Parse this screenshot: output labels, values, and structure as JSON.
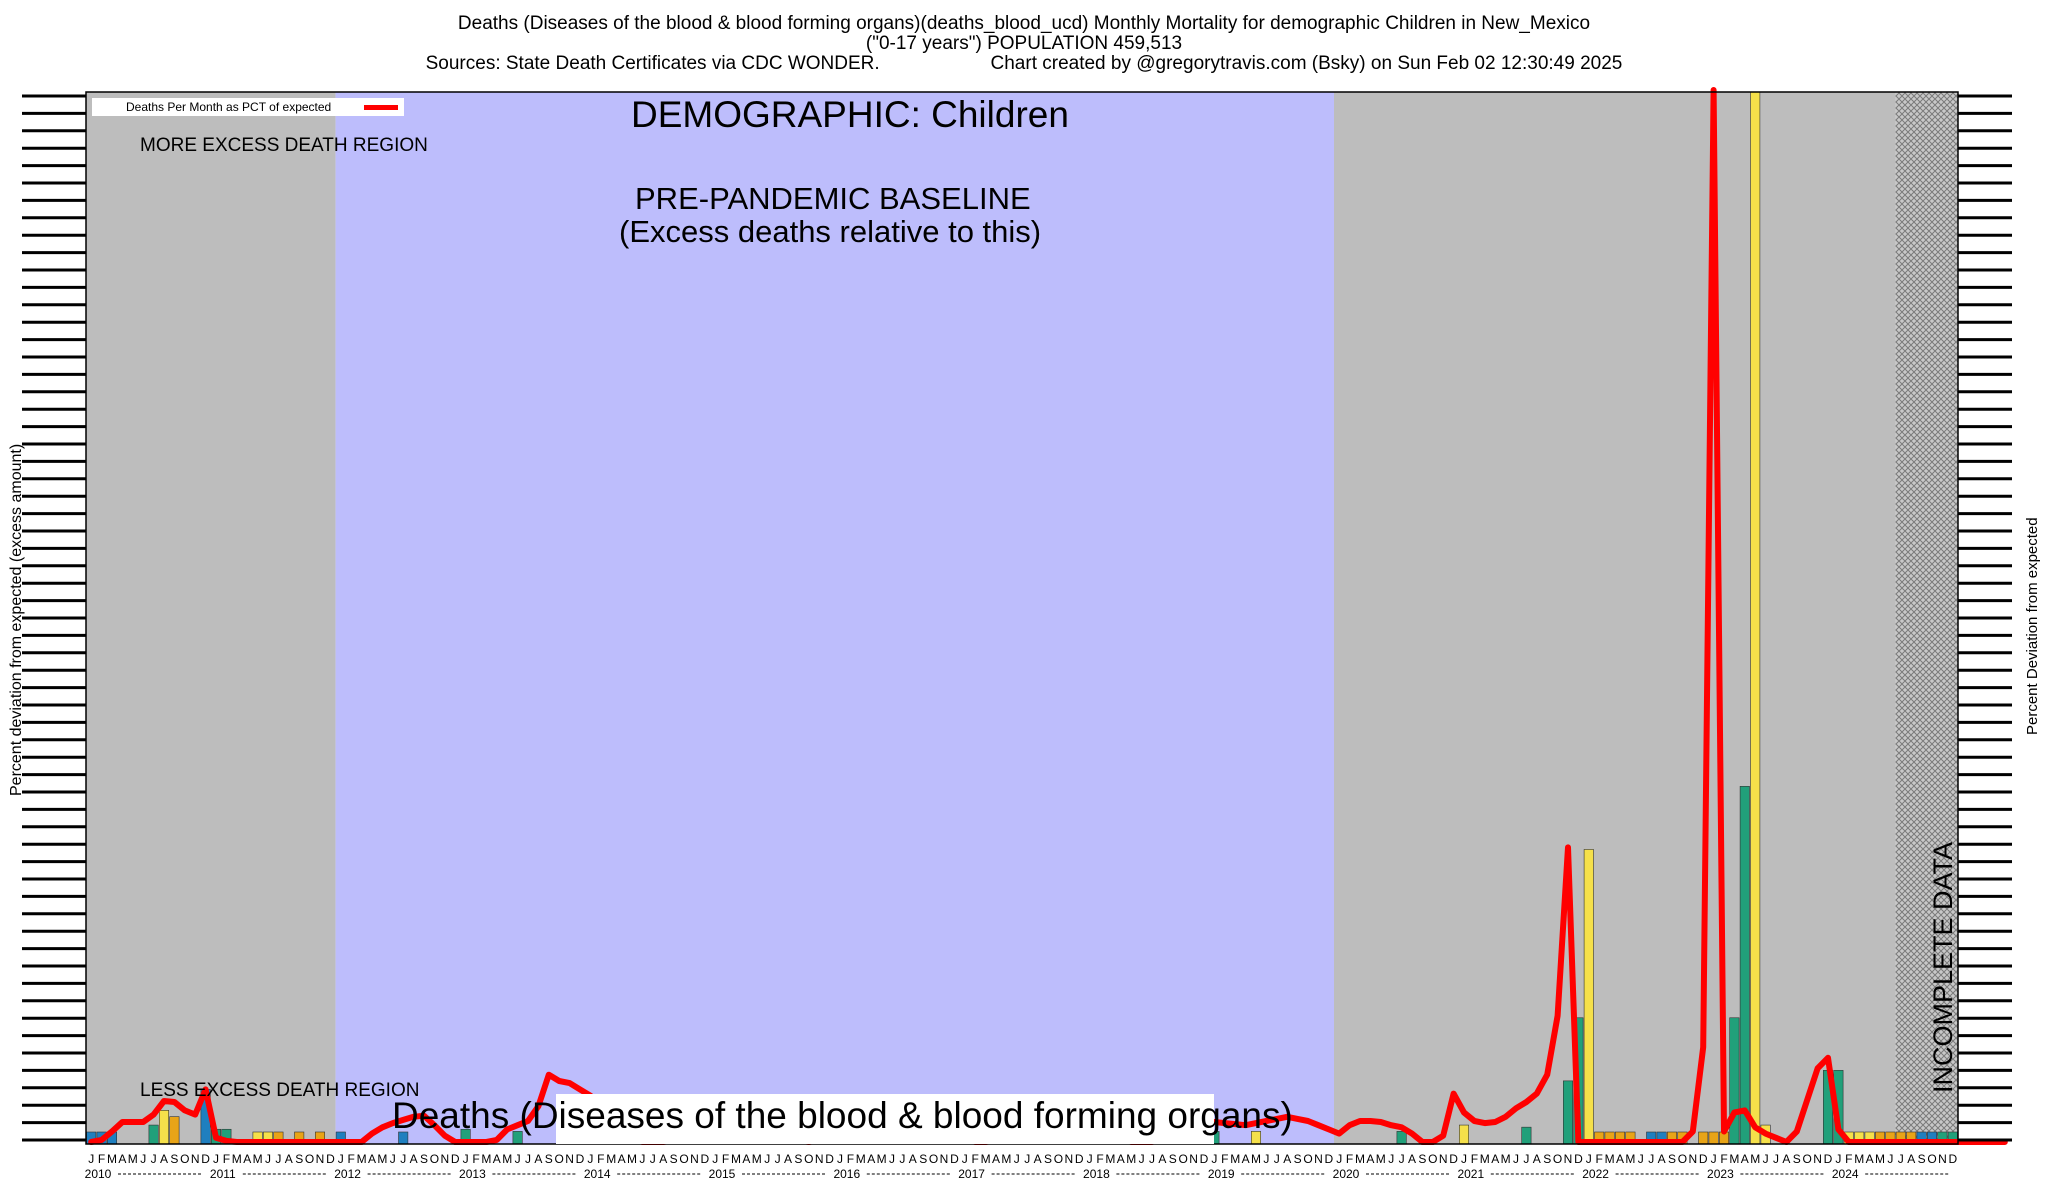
{
  "header": {
    "line1": "Deaths (Diseases of the blood & blood forming organs)(deaths_blood_ucd) Monthly Mortality for demographic Children in New_Mexico",
    "line2": "(\"0-17 years\") POPULATION 459,513",
    "line3_left": "Sources: State Death Certificates via CDC WONDER.",
    "line3_right": "Chart created by @gregorytravis.com (Bsky) on Sun Feb 02 12:30:49 2025"
  },
  "annotations": {
    "demographic": "DEMOGRAPHIC: Children",
    "baseline_line1": "PRE-PANDEMIC BASELINE",
    "baseline_line2": "(Excess deaths relative to this)",
    "more_excess": "MORE EXCESS DEATH REGION",
    "less_excess": "LESS EXCESS DEATH REGION",
    "bottom_caption": "Deaths (Diseases of the blood & blood forming organs)",
    "incomplete": "INCOMPLETE DATA"
  },
  "colors": {
    "gray_region": "#bdbdbd",
    "baseline_region": "#bdbdfc",
    "line": "#ff0000",
    "bar_blue": "#1f7fbf",
    "bar_green": "#21a07a",
    "bar_yellow": "#f5e04a",
    "bar_orange": "#e8a417",
    "incomplete_hatch": "#9a9a9a"
  },
  "chart_data": {
    "type": "line",
    "title": "Deaths (Diseases of the blood & blood forming organs)(deaths_blood_ucd) Monthly Mortality for demographic Children in New_Mexico",
    "ylabel_left": "Percent deviation from expected (excess amount)",
    "ylabel_right": "Percent Deviation from expected",
    "legend": {
      "label": "Deaths Per Month as PCT of expected",
      "placement": "top-left"
    },
    "x_month_letters": [
      "J",
      "F",
      "M",
      "A",
      "M",
      "J",
      "J",
      "A",
      "S",
      "O",
      "N",
      "D"
    ],
    "years": [
      "2010",
      "2011",
      "2012",
      "2013",
      "2014",
      "2015",
      "2016",
      "2017",
      "2018",
      "2019",
      "2020",
      "2021",
      "2022",
      "2023",
      "2024"
    ],
    "ylim": [
      -100,
      4900
    ],
    "regions": [
      {
        "name": "more_excess",
        "start_month": 0,
        "end_month": 24
      },
      {
        "name": "baseline",
        "start_month": 24,
        "end_month": 120
      },
      {
        "name": "pandemic",
        "start_month": 120,
        "end_month": 174
      },
      {
        "name": "incomplete",
        "start_month": 174,
        "end_month": 180
      }
    ],
    "series": [
      {
        "name": "Deaths Per Month as PCT of expected",
        "values": [
          -100,
          -90,
          -50,
          -5,
          -5,
          -5,
          30,
          95,
          90,
          50,
          30,
          150,
          -80,
          -95,
          -100,
          -100,
          -100,
          -100,
          -100,
          -100,
          -100,
          -100,
          -100,
          -100,
          -100,
          -100,
          -100,
          -60,
          -30,
          -10,
          5,
          20,
          25,
          -20,
          -70,
          -100,
          -100,
          -100,
          -100,
          -90,
          -40,
          -20,
          0,
          70,
          220,
          190,
          180,
          150,
          120,
          80,
          20,
          -20,
          -80,
          -100,
          -100,
          -100,
          -90,
          -60,
          -40,
          -10,
          10,
          30,
          40,
          20,
          0,
          -20,
          -40,
          -70,
          -90,
          -100,
          -90,
          -70,
          -50,
          -30,
          -10,
          10,
          30,
          60,
          40,
          20,
          0,
          -20,
          -40,
          -60,
          -80,
          -100,
          -100,
          -90,
          -70,
          -40,
          -20,
          0,
          20,
          40,
          20,
          0,
          -20,
          -40,
          -60,
          -80,
          -100,
          -100,
          -100,
          -80,
          -60,
          -40,
          -20,
          0,
          -5,
          -10,
          -15,
          -20,
          -10,
          0,
          10,
          20,
          10,
          0,
          -20,
          -40,
          -60,
          -20,
          0,
          0,
          -5,
          -20,
          -30,
          -60,
          -100,
          -100,
          -70,
          130,
          40,
          0,
          -10,
          -5,
          20,
          60,
          90,
          130,
          220,
          500,
          1300,
          -100,
          -100,
          -100,
          -100,
          -100,
          -100,
          -100,
          -100,
          -100,
          -100,
          -100,
          -50,
          350,
          4900,
          -50,
          40,
          50,
          -30,
          -60,
          -80,
          -100,
          -50,
          100,
          250,
          300,
          -40,
          -100,
          -100,
          -100,
          -100,
          -100,
          -100,
          -100,
          -100,
          -100,
          -100,
          -100,
          -100,
          -100,
          -100,
          -100,
          -100
        ]
      }
    ],
    "bars": [
      {
        "m": 0,
        "v": -80,
        "c": "bar_blue"
      },
      {
        "m": 1,
        "v": -80,
        "c": "bar_blue"
      },
      {
        "m": 2,
        "v": -60,
        "c": "bar_blue"
      },
      {
        "m": 6,
        "v": -10,
        "c": "bar_green"
      },
      {
        "m": 7,
        "v": 60,
        "c": "bar_yellow"
      },
      {
        "m": 8,
        "v": 30,
        "c": "bar_orange"
      },
      {
        "m": 11,
        "v": 160,
        "c": "bar_blue"
      },
      {
        "m": 12,
        "v": -30,
        "c": "bar_green"
      },
      {
        "m": 13,
        "v": -30,
        "c": "bar_green"
      },
      {
        "m": 16,
        "v": -60,
        "c": "bar_yellow"
      },
      {
        "m": 17,
        "v": -60,
        "c": "bar_yellow"
      },
      {
        "m": 18,
        "v": -60,
        "c": "bar_orange"
      },
      {
        "m": 20,
        "v": -60,
        "c": "bar_orange"
      },
      {
        "m": 22,
        "v": -60,
        "c": "bar_orange"
      },
      {
        "m": 24,
        "v": -60,
        "c": "bar_blue"
      },
      {
        "m": 30,
        "v": -60,
        "c": "bar_blue"
      },
      {
        "m": 36,
        "v": -30,
        "c": "bar_green"
      },
      {
        "m": 41,
        "v": -40,
        "c": "bar_green"
      },
      {
        "m": 96,
        "v": -40,
        "c": "bar_green"
      },
      {
        "m": 108,
        "v": -40,
        "c": "bar_green"
      },
      {
        "m": 112,
        "v": -40,
        "c": "bar_yellow"
      },
      {
        "m": 126,
        "v": -40,
        "c": "bar_green"
      },
      {
        "m": 132,
        "v": -10,
        "c": "bar_yellow"
      },
      {
        "m": 138,
        "v": -20,
        "c": "bar_green"
      },
      {
        "m": 142,
        "v": 200,
        "c": "bar_green"
      },
      {
        "m": 143,
        "v": 500,
        "c": "bar_green"
      },
      {
        "m": 144,
        "v": 1300,
        "c": "bar_yellow"
      },
      {
        "m": 145,
        "v": -80,
        "c": "bar_orange"
      },
      {
        "m": 146,
        "v": -80,
        "c": "bar_orange"
      },
      {
        "m": 147,
        "v": -80,
        "c": "bar_orange"
      },
      {
        "m": 148,
        "v": -80,
        "c": "bar_orange"
      },
      {
        "m": 150,
        "v": -80,
        "c": "bar_blue"
      },
      {
        "m": 151,
        "v": -80,
        "c": "bar_blue"
      },
      {
        "m": 152,
        "v": -80,
        "c": "bar_orange"
      },
      {
        "m": 153,
        "v": -80,
        "c": "bar_orange"
      },
      {
        "m": 155,
        "v": -80,
        "c": "bar_orange"
      },
      {
        "m": 156,
        "v": -80,
        "c": "bar_orange"
      },
      {
        "m": 157,
        "v": -80,
        "c": "bar_orange"
      },
      {
        "m": 158,
        "v": 500,
        "c": "bar_green"
      },
      {
        "m": 159,
        "v": 1600,
        "c": "bar_green"
      },
      {
        "m": 160,
        "v": 4900,
        "c": "bar_yellow"
      },
      {
        "m": 161,
        "v": -10,
        "c": "bar_yellow"
      },
      {
        "m": 167,
        "v": 250,
        "c": "bar_green"
      },
      {
        "m": 168,
        "v": 250,
        "c": "bar_green"
      },
      {
        "m": 169,
        "v": -60,
        "c": "bar_yellow"
      },
      {
        "m": 170,
        "v": -80,
        "c": "bar_yellow"
      },
      {
        "m": 171,
        "v": -80,
        "c": "bar_yellow"
      },
      {
        "m": 172,
        "v": -80,
        "c": "bar_orange"
      },
      {
        "m": 173,
        "v": -80,
        "c": "bar_orange"
      },
      {
        "m": 174,
        "v": -80,
        "c": "bar_orange"
      },
      {
        "m": 175,
        "v": -80,
        "c": "bar_orange"
      },
      {
        "m": 176,
        "v": -80,
        "c": "bar_blue"
      },
      {
        "m": 177,
        "v": -80,
        "c": "bar_blue"
      },
      {
        "m": 178,
        "v": -80,
        "c": "bar_green"
      },
      {
        "m": 179,
        "v": -80,
        "c": "bar_green"
      }
    ],
    "grid": false
  }
}
